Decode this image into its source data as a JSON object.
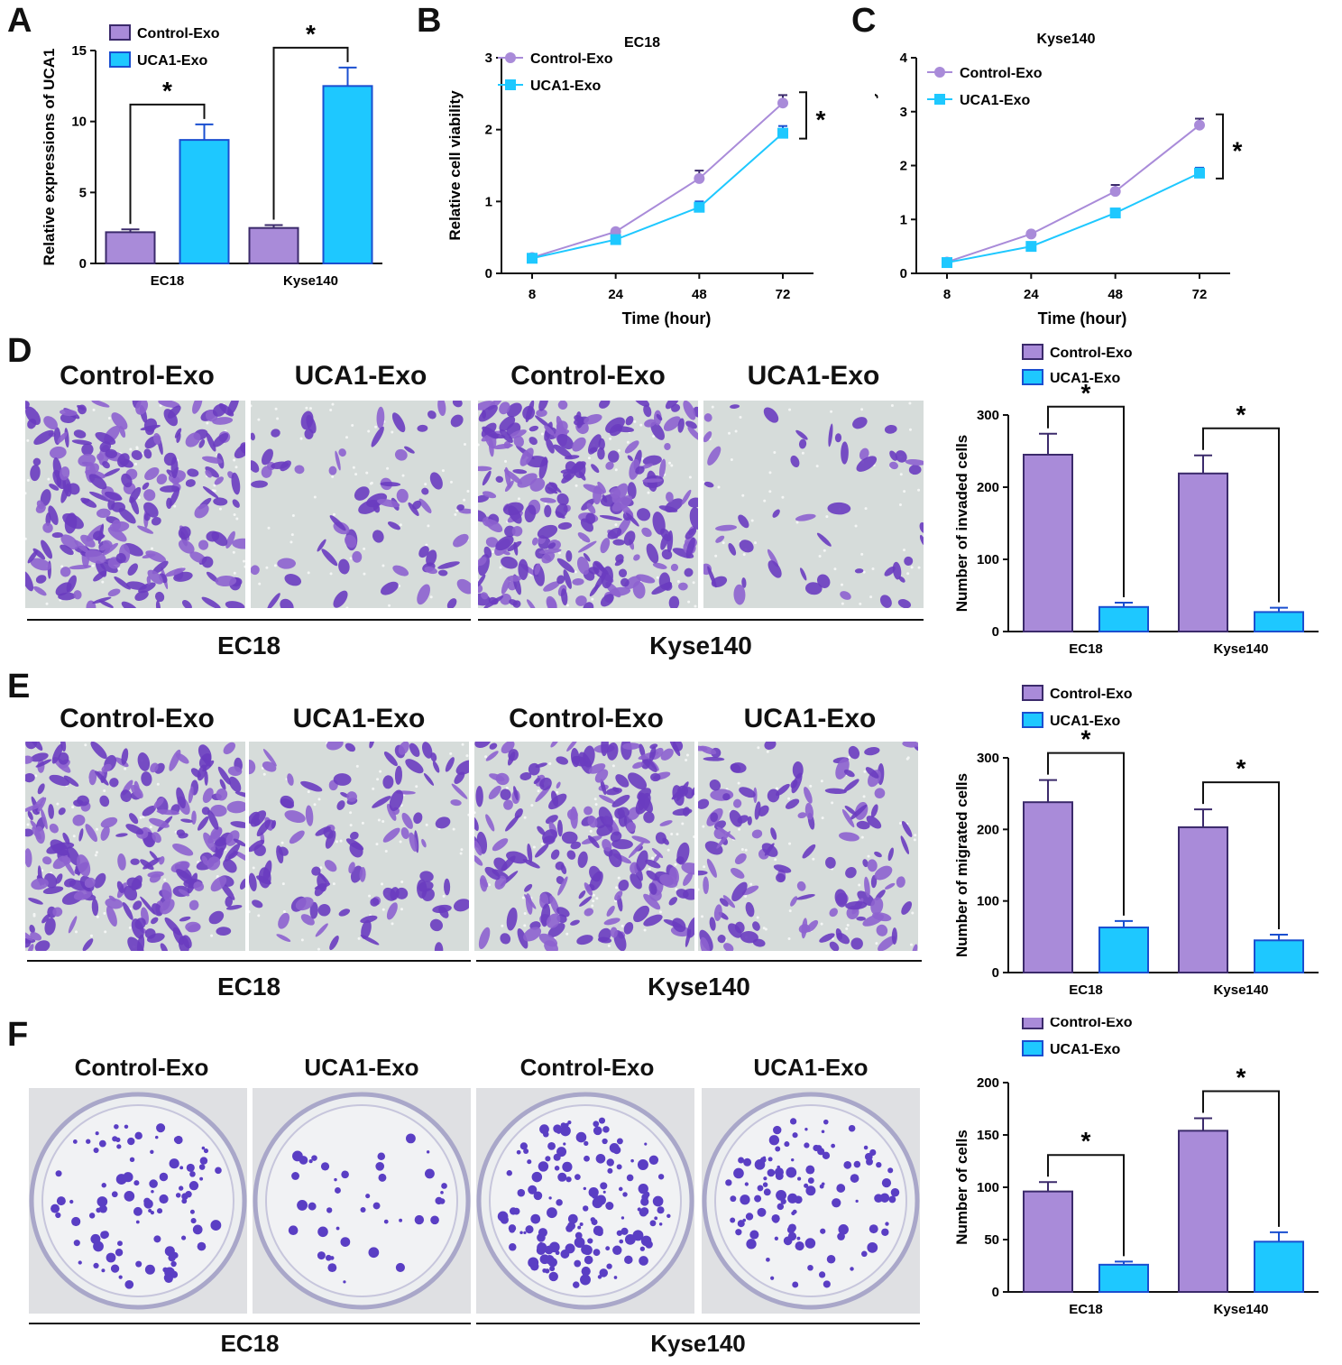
{
  "colors": {
    "control": "#a98bd9",
    "uca1": "#1ec8ff",
    "control_dark": "#3b2a6b",
    "uca1_dark": "#1a4fd0",
    "crystal": "#7a4fc4",
    "colony": "#5a3ec4"
  },
  "panel_labels": {
    "A": "A",
    "B": "B",
    "C": "C",
    "D": "D",
    "E": "E",
    "F": "F"
  },
  "image_titles": {
    "D": [
      "Control-Exo",
      "UCA1-Exo",
      "Control-Exo",
      "UCA1-Exo"
    ],
    "E": [
      "Control-Exo",
      "UCA1-Exo",
      "Control-Exo",
      "UCA1-Exo"
    ],
    "F": [
      "Control-Exo",
      "UCA1-Exo",
      "Control-Exo",
      "UCA1-Exo"
    ]
  },
  "cell_lines": {
    "D": [
      "EC18",
      "Kyse140"
    ],
    "E": [
      "EC18",
      "Kyse140"
    ],
    "F": [
      "EC18",
      "Kyse140"
    ]
  },
  "chart_data": [
    {
      "id": "A",
      "type": "bar",
      "title": "",
      "ylabel": "Relative expressions of UCA1",
      "xlabel": "",
      "categories": [
        "EC18",
        "Kyse140"
      ],
      "ylim": [
        0,
        15
      ],
      "yticks": [
        "0",
        "5",
        "10",
        "15"
      ],
      "series": [
        {
          "name": "Control-Exo",
          "values": [
            2.2,
            2.5
          ],
          "errors": [
            0.2,
            0.2
          ]
        },
        {
          "name": "UCA1-Exo",
          "values": [
            8.7,
            12.5
          ],
          "errors": [
            1.1,
            1.3
          ]
        }
      ],
      "significance": [
        "*",
        "*"
      ],
      "legend": "top-left"
    },
    {
      "id": "B",
      "type": "line",
      "title": "EC18",
      "xlabel": "Time (hour)",
      "ylabel": "Relative cell viability",
      "x": [
        "8",
        "24",
        "48",
        "72"
      ],
      "ylim": [
        0,
        3
      ],
      "yticks": [
        "0",
        "1",
        "2",
        "3"
      ],
      "series": [
        {
          "name": "Control-Exo",
          "values": [
            0.22,
            0.58,
            1.32,
            2.37
          ],
          "errors": [
            0.02,
            0.03,
            0.11,
            0.11
          ]
        },
        {
          "name": "UCA1-Exo",
          "values": [
            0.21,
            0.47,
            0.92,
            1.95
          ],
          "errors": [
            0.02,
            0.03,
            0.08,
            0.1
          ]
        }
      ],
      "significance": "*",
      "legend": "top-left"
    },
    {
      "id": "C",
      "type": "line",
      "title": "Kyse140",
      "xlabel": "Time (hour)",
      "ylabel": "Relative cell viability",
      "x": [
        "8",
        "24",
        "48",
        "72"
      ],
      "ylim": [
        0,
        4
      ],
      "yticks": [
        "0",
        "1",
        "2",
        "3",
        "4"
      ],
      "series": [
        {
          "name": "Control-Exo",
          "values": [
            0.21,
            0.73,
            1.52,
            2.75
          ],
          "errors": [
            0.02,
            0.03,
            0.12,
            0.12
          ]
        },
        {
          "name": "UCA1-Exo",
          "values": [
            0.2,
            0.5,
            1.12,
            1.86
          ],
          "errors": [
            0.02,
            0.03,
            0.08,
            0.1
          ]
        }
      ],
      "significance": "*",
      "legend": "top-left"
    },
    {
      "id": "D",
      "type": "bar",
      "title": "",
      "ylabel": "Number of invaded cells",
      "xlabel": "",
      "categories": [
        "EC18",
        "Kyse140"
      ],
      "ylim": [
        0,
        300
      ],
      "yticks": [
        "0",
        "100",
        "200",
        "300"
      ],
      "series": [
        {
          "name": "Control-Exo",
          "values": [
            245,
            219
          ],
          "errors": [
            29,
            25
          ]
        },
        {
          "name": "UCA1-Exo",
          "values": [
            34,
            27
          ],
          "errors": [
            6,
            6
          ]
        }
      ],
      "significance": [
        "*",
        "*"
      ],
      "legend": "top"
    },
    {
      "id": "E",
      "type": "bar",
      "title": "",
      "ylabel": "Number of migrated cells",
      "xlabel": "",
      "categories": [
        "EC18",
        "Kyse140"
      ],
      "ylim": [
        0,
        300
      ],
      "yticks": [
        "0",
        "100",
        "200",
        "300"
      ],
      "series": [
        {
          "name": "Control-Exo",
          "values": [
            238,
            203
          ],
          "errors": [
            31,
            25
          ]
        },
        {
          "name": "UCA1-Exo",
          "values": [
            63,
            45
          ],
          "errors": [
            9,
            8
          ]
        }
      ],
      "significance": [
        "*",
        "*"
      ],
      "legend": "top"
    },
    {
      "id": "F",
      "type": "bar",
      "title": "",
      "ylabel": "Number of cells",
      "xlabel": "",
      "categories": [
        "EC18",
        "Kyse140"
      ],
      "ylim": [
        0,
        200
      ],
      "yticks": [
        "0",
        "50",
        "100",
        "150",
        "200"
      ],
      "series": [
        {
          "name": "Control-Exo",
          "values": [
            96,
            154
          ],
          "errors": [
            9,
            12
          ]
        },
        {
          "name": "UCA1-Exo",
          "values": [
            26,
            48
          ],
          "errors": [
            3,
            9
          ]
        }
      ],
      "significance": [
        "*",
        "*"
      ],
      "legend": "top"
    }
  ]
}
